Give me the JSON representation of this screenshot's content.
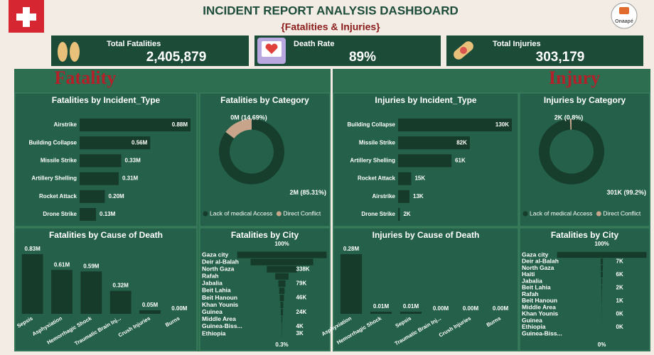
{
  "header": {
    "title": "INCIDENT REPORT ANALYSIS DASHBOARD",
    "subtitle": "{Fatalities & Injuries}",
    "logo": "Onaapé"
  },
  "kpis": [
    {
      "label": "Total Fatalities",
      "value": "2,405,879"
    },
    {
      "label": "Death Rate",
      "value": "89%"
    },
    {
      "label": "Total Injuries",
      "value": "303,179"
    }
  ],
  "sections": [
    "Fatality",
    "Injury"
  ],
  "chart_data": [
    {
      "type": "bar",
      "orientation": "horizontal",
      "title": "Fatalities by Incident_Type",
      "categories": [
        "Airstrike",
        "Building Collapse",
        "Missile Strike",
        "Artillery Shelling",
        "Rocket Attack",
        "Drone Strike"
      ],
      "values": [
        880000,
        560000,
        330000,
        310000,
        200000,
        130000
      ],
      "value_labels": [
        "0.88M",
        "0.56M",
        "0.33M",
        "0.31M",
        "0.20M",
        "0.13M"
      ],
      "color": "#163b2a"
    },
    {
      "type": "donut",
      "title": "Fatalities by Category",
      "categories": [
        "Lack of medical Access",
        "Direct Conflict"
      ],
      "values": [
        85.31,
        14.69
      ],
      "value_labels": [
        "2M (85.31%)",
        "0M (14.69%)"
      ],
      "colors": [
        "#173d2c",
        "#c8a58a"
      ],
      "legend": "bottom"
    },
    {
      "type": "bar",
      "orientation": "vertical",
      "title": "Fatalities by Cause of Death",
      "categories": [
        "Sepsis",
        "Asphyxiation",
        "Hemorrhagic Shock",
        "Traumatic Brain Inj...",
        "Crush Injuries",
        "Burns"
      ],
      "values": [
        830000,
        610000,
        590000,
        320000,
        50000,
        0
      ],
      "value_labels": [
        "0.83M",
        "0.61M",
        "0.59M",
        "0.32M",
        "0.05M",
        "0.00M"
      ],
      "color": "#163b2a"
    },
    {
      "type": "funnel",
      "title": "Fatalities by City",
      "top_label": "100%",
      "bottom_label": "0.3%",
      "categories": [
        "Gaza city",
        "Deir al-Balah",
        "North Gaza",
        "Rafah",
        "Jabalia",
        "Beit Lahia",
        "Beit Hanoun",
        "Khan Younis",
        "Guinea",
        "Middle Area",
        "Guinea-Biss...",
        "Ethiopia"
      ],
      "values": [
        1000000,
        700000,
        338000,
        150000,
        79000,
        60000,
        46000,
        30000,
        24000,
        10000,
        4000,
        3000
      ],
      "value_labels": [
        null,
        null,
        "338K",
        null,
        "79K",
        null,
        "46K",
        null,
        "24K",
        null,
        "4K",
        "3K"
      ],
      "color": "#163b2a"
    },
    {
      "type": "bar",
      "orientation": "horizontal",
      "title": "Injuries by Incident_Type",
      "categories": [
        "Building Collapse",
        "Missile Strike",
        "Artillery Shelling",
        "Rocket Attack",
        "Airstrike",
        "Drone Strike"
      ],
      "values": [
        130000,
        82000,
        61000,
        15000,
        13000,
        2000
      ],
      "value_labels": [
        "130K",
        "82K",
        "61K",
        "15K",
        "13K",
        "2K"
      ],
      "color": "#163b2a"
    },
    {
      "type": "donut",
      "title": "Injuries by Category",
      "categories": [
        "Lack of medical Access",
        "Direct Conflict"
      ],
      "values": [
        99.2,
        0.8
      ],
      "value_labels": [
        "301K (99.2%)",
        "2K (0.8%)"
      ],
      "colors": [
        "#173d2c",
        "#c8a58a"
      ],
      "legend": "bottom"
    },
    {
      "type": "bar",
      "orientation": "vertical",
      "title": "Injuries by Cause of Death",
      "categories": [
        "Asphyxiation",
        "Hemorrhagic Shock",
        "Sepsis",
        "Traumatic Brain Inj...",
        "Crush Injuries",
        "Burns"
      ],
      "values": [
        280000,
        10000,
        10000,
        0,
        0,
        0
      ],
      "value_labels": [
        "0.28M",
        "0.01M",
        "0.01M",
        "0.00M",
        "0.00M",
        "0.00M"
      ],
      "color": "#163b2a"
    },
    {
      "type": "funnel",
      "title": "Fatalities by City",
      "top_label": "100%",
      "bottom_label": "0%",
      "categories": [
        "Gaza city",
        "Deir al-Balah",
        "North Gaza",
        "Haiti",
        "Jabalia",
        "Beit Lahia",
        "Rafah",
        "Beit Hanoun",
        "Middle Area",
        "Khan Younis",
        "Guinea",
        "Ethiopia",
        "Guinea-Biss..."
      ],
      "values": [
        280000,
        7000,
        6500,
        6000,
        3000,
        2000,
        1500,
        1000,
        500,
        300,
        200,
        100,
        50
      ],
      "value_labels": [
        null,
        "7K",
        null,
        "6K",
        null,
        "2K",
        null,
        "1K",
        null,
        "0K",
        null,
        "0K",
        null
      ],
      "color": "#163b2a"
    }
  ]
}
